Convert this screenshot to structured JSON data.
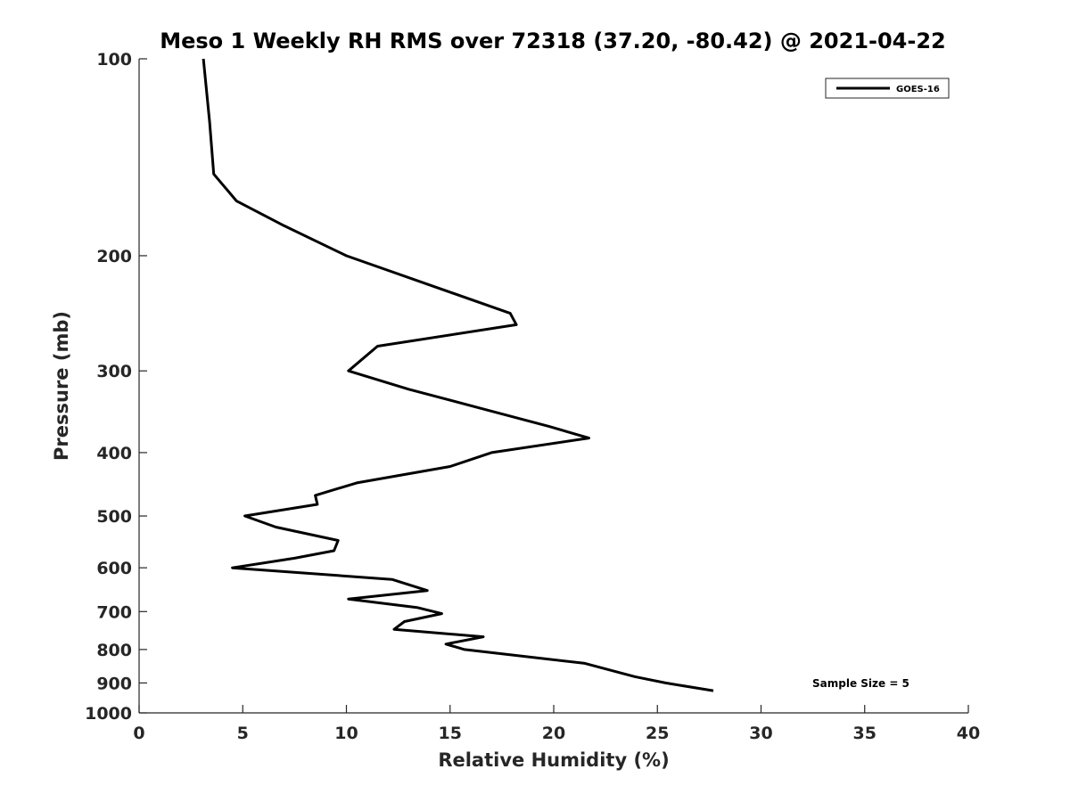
{
  "chart_data": {
    "type": "line",
    "title": "Meso 1 Weekly RH RMS over 72318 (37.20, -80.42) @ 2021-04-22",
    "xlabel": "Relative Humidity (%)",
    "ylabel": "Pressure (mb)",
    "xlim": [
      0,
      40
    ],
    "ylim": [
      100,
      1000
    ],
    "y_scale": "log",
    "y_reversed": true,
    "x_ticks": [
      0,
      5,
      10,
      15,
      20,
      25,
      30,
      35,
      40
    ],
    "y_ticks": [
      100,
      200,
      300,
      400,
      500,
      600,
      700,
      800,
      900,
      1000
    ],
    "grid": false,
    "legend_position": "top-right",
    "annotation": "Sample Size = 5",
    "series": [
      {
        "name": "GOES-16",
        "color": "#000000",
        "x": [
          3.1,
          3.4,
          3.6,
          4.7,
          7.0,
          10.0,
          17.9,
          18.2,
          11.5,
          10.1,
          13.0,
          16.9,
          19.8,
          21.7,
          17.0,
          15.0,
          10.5,
          8.5,
          8.6,
          5.1,
          6.6,
          9.6,
          9.4,
          7.5,
          4.5,
          12.2,
          13.9,
          10.1,
          13.4,
          14.6,
          12.8,
          12.3,
          16.6,
          14.8,
          15.7,
          21.5,
          23.9,
          25.4,
          27.7
        ],
        "y": [
          100,
          125,
          150,
          165,
          180,
          200,
          245,
          255,
          275,
          300,
          320,
          345,
          365,
          380,
          400,
          420,
          445,
          465,
          480,
          500,
          520,
          545,
          565,
          580,
          600,
          625,
          650,
          670,
          690,
          705,
          725,
          745,
          765,
          785,
          800,
          840,
          880,
          900,
          925
        ]
      }
    ]
  }
}
